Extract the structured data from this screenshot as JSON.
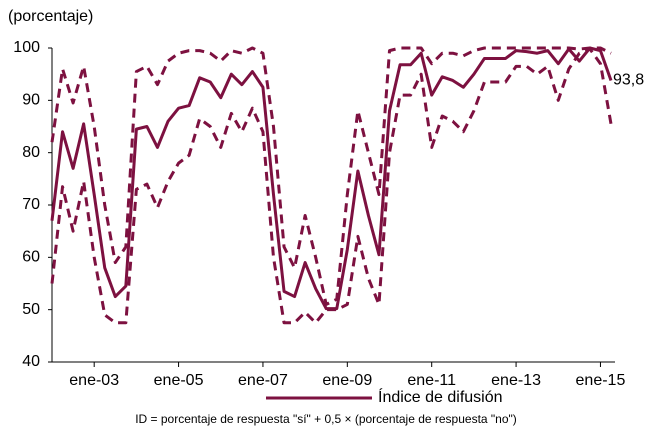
{
  "chart_data": {
    "type": "line",
    "y_label": "(porcentaje)",
    "footnote": "ID = porcentaje de respuesta \"sí\" + 0,5 × (porcentaje de respuesta \"no\")",
    "categories": [
      null,
      null,
      null,
      null,
      "ene-03",
      null,
      null,
      null,
      null,
      null,
      null,
      null,
      "ene-05",
      null,
      null,
      null,
      null,
      null,
      null,
      null,
      "ene-07",
      null,
      null,
      null,
      null,
      null,
      null,
      null,
      "ene-09",
      null,
      null,
      null,
      null,
      null,
      null,
      null,
      "ene-11",
      null,
      null,
      null,
      null,
      null,
      null,
      null,
      "ene-13",
      null,
      null,
      null,
      null,
      null,
      null,
      null,
      "ene-15",
      null
    ],
    "ylim": [
      40,
      100
    ],
    "yticks": [
      40,
      50,
      60,
      70,
      80,
      90,
      100
    ],
    "grid": false,
    "series": [
      {
        "name": "Índice de difusión",
        "color": "#7d1140",
        "dash": false,
        "values": [
          67,
          84,
          77,
          85.5,
          72,
          58,
          52.5,
          54.5,
          84.5,
          85,
          81,
          86,
          88.5,
          89,
          94.3,
          93.5,
          90.5,
          95,
          93,
          95.5,
          92.5,
          72,
          53.5,
          52.5,
          59,
          54,
          50.2,
          50.2,
          61.5,
          76.5,
          68,
          60.5,
          88,
          96.8,
          96.8,
          99,
          91,
          94.5,
          93.8,
          92.5,
          95,
          98,
          98,
          98,
          99.5,
          99.3,
          99,
          99.5,
          97,
          99.8,
          97.5,
          100,
          99.5,
          93.8
        ],
        "value_labels": [
          null,
          null,
          null,
          null,
          null,
          null,
          null,
          null,
          null,
          null,
          null,
          null,
          null,
          null,
          null,
          null,
          null,
          null,
          null,
          null,
          null,
          null,
          null,
          null,
          null,
          null,
          null,
          null,
          null,
          null,
          null,
          null,
          null,
          null,
          null,
          null,
          null,
          null,
          null,
          null,
          null,
          null,
          null,
          null,
          null,
          null,
          null,
          null,
          null,
          null,
          null,
          null,
          null,
          "93,8"
        ]
      },
      {
        "color": "#7d1140",
        "dash": true,
        "values": [
          82,
          96,
          89.5,
          96.5,
          85,
          70,
          59,
          62,
          95.5,
          96.5,
          93,
          97.5,
          99,
          99.5,
          99.5,
          99,
          97.5,
          99.5,
          99,
          100,
          99,
          85,
          62,
          58,
          68,
          60,
          51,
          52,
          72,
          88,
          80,
          72,
          99.5,
          100,
          100,
          100,
          97,
          99,
          99,
          98.5,
          99.5,
          100,
          100,
          100,
          100,
          100,
          100,
          100,
          100,
          100,
          99.8,
          100,
          100,
          99
        ]
      },
      {
        "color": "#7d1140",
        "dash": true,
        "values": [
          55,
          73.5,
          65,
          74.5,
          60,
          49,
          47.5,
          47.5,
          73,
          74,
          69.5,
          74.5,
          78,
          79.5,
          86.5,
          85,
          81,
          87.5,
          84,
          88.5,
          84,
          60,
          47.5,
          47.5,
          49.5,
          47.5,
          50,
          50,
          51,
          64,
          56,
          51,
          80,
          91,
          91,
          95,
          81,
          87,
          86,
          84,
          88,
          93.5,
          93.5,
          93.5,
          96.5,
          96.5,
          95,
          96.5,
          90,
          96,
          99,
          99.8,
          97,
          85.5
        ]
      }
    ]
  }
}
